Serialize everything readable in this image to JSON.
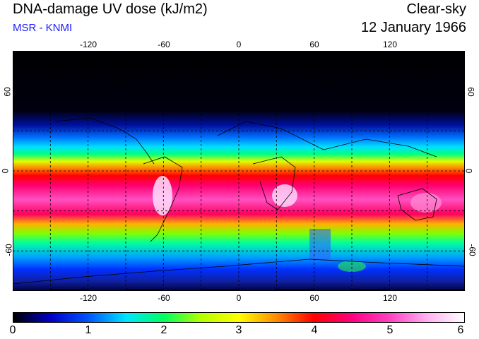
{
  "header": {
    "title": "DNA-damage UV dose (kJ/m2)",
    "subtitle": "MSR - KNMI",
    "condition": "Clear-sky",
    "date": "12 January 1966"
  },
  "map": {
    "lon_ticks": [
      "-120",
      "-60",
      "0",
      "60",
      "120"
    ],
    "lat_ticks": [
      "60",
      "0",
      "-60"
    ],
    "lon_range": [
      -180,
      180
    ],
    "lat_range": [
      -90,
      90
    ],
    "grid": "dashed"
  },
  "colorbar": {
    "labels": [
      "0",
      "1",
      "2",
      "3",
      "4",
      "5",
      "6"
    ],
    "range": [
      0,
      6
    ],
    "colors": [
      "#000000",
      "#0000c8",
      "#0055ff",
      "#00e5ff",
      "#00ff60",
      "#b4ff00",
      "#ffff00",
      "#ff8c00",
      "#ff0000",
      "#ff0080",
      "#ff40c0",
      "#ffb0f0",
      "#ffffff"
    ]
  }
}
